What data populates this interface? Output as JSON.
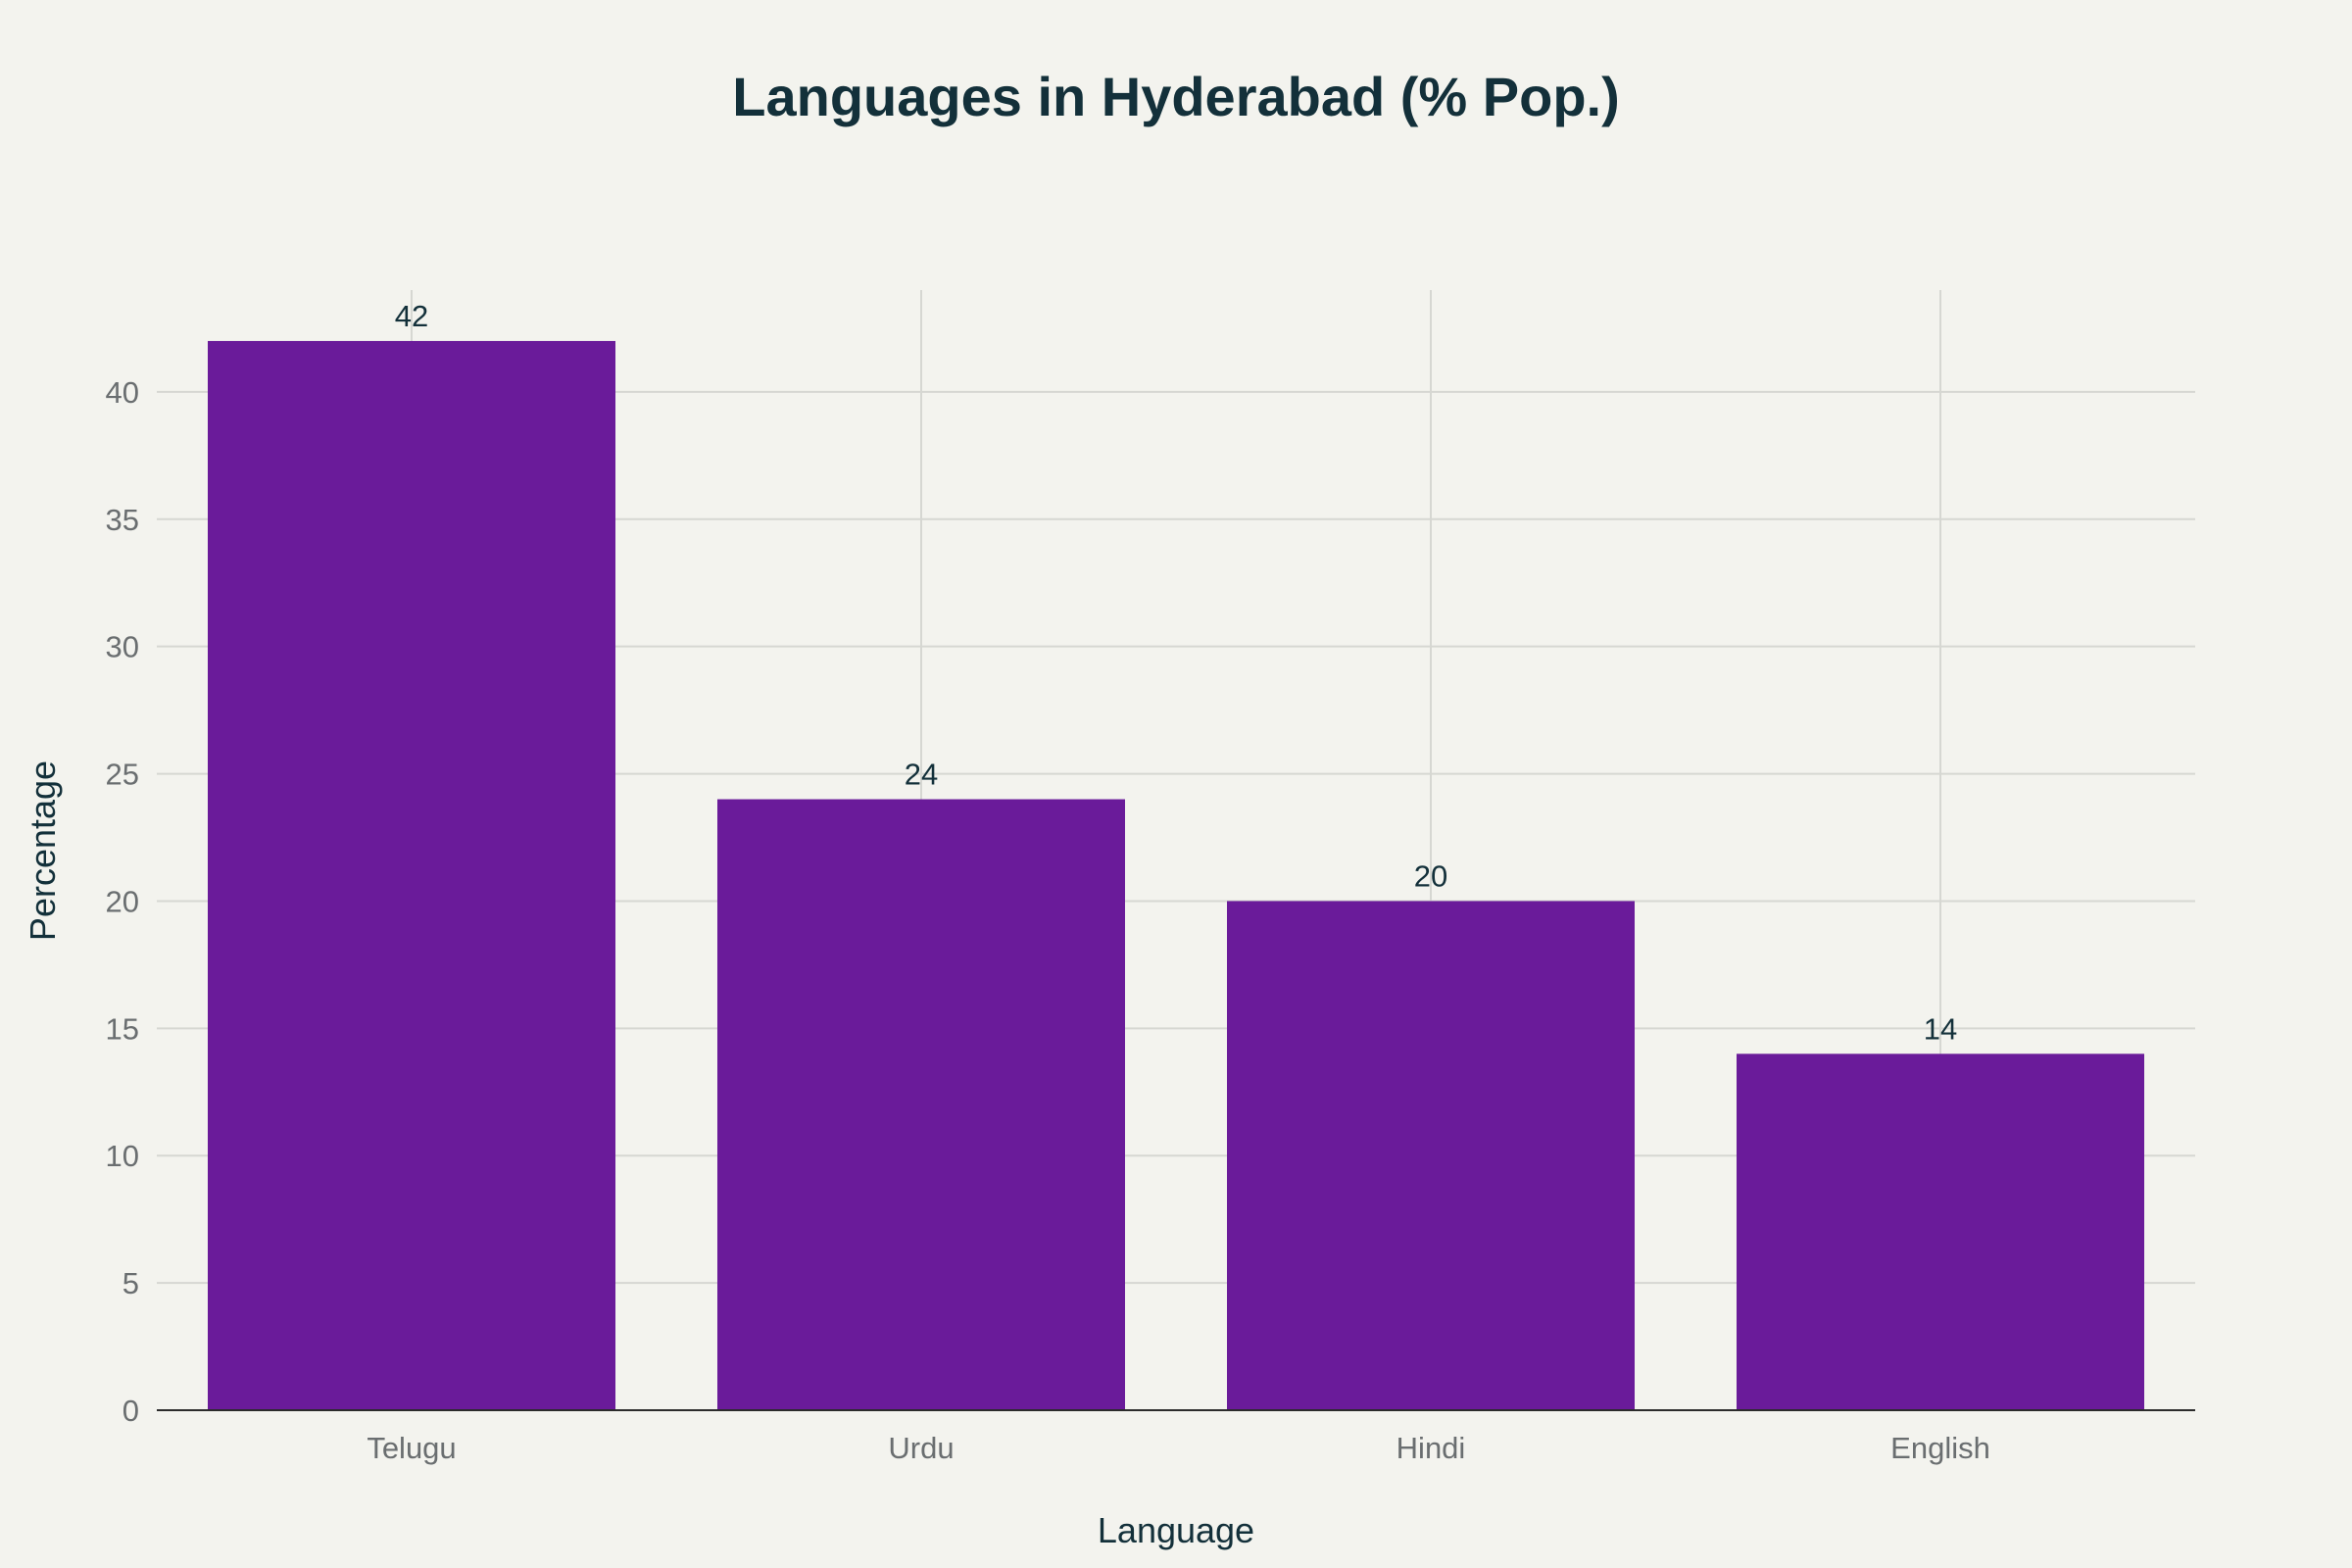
{
  "chart_data": {
    "type": "bar",
    "title": "Languages in Hyderabad (% Pop.)",
    "xlabel": "Language",
    "ylabel": "Percentage",
    "categories": [
      "Telugu",
      "Urdu",
      "Hindi",
      "English"
    ],
    "values": [
      42,
      24,
      20,
      14
    ],
    "data_labels": [
      "42",
      "24",
      "20",
      "14"
    ],
    "ylim": [
      0,
      44
    ],
    "yticks": [
      0,
      5,
      10,
      15,
      20,
      25,
      30,
      35,
      40
    ],
    "ytick_labels": [
      "0",
      "5",
      "10",
      "15",
      "20",
      "25",
      "30",
      "35",
      "40"
    ],
    "grid": true,
    "legend": "none",
    "bar_color": "#6a1b9a"
  }
}
